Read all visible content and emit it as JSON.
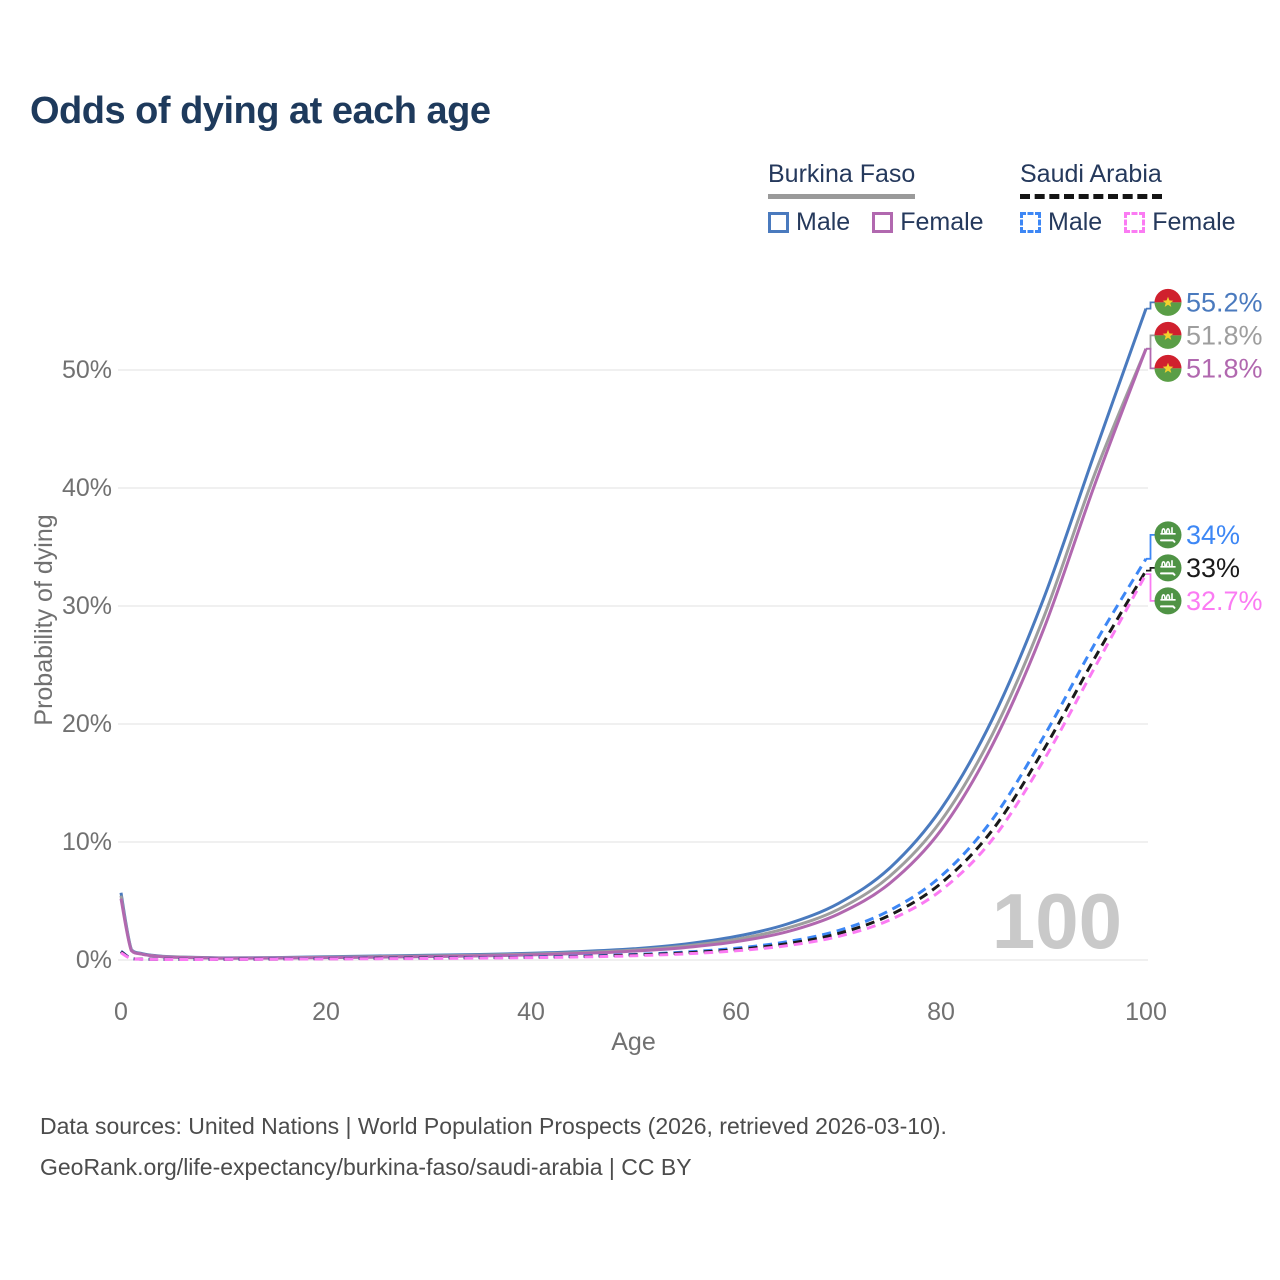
{
  "title": "Odds of dying at each age",
  "legend": {
    "groups": [
      {
        "country": "Burkina Faso",
        "line_style": "solid",
        "underline_color": "#9a9a9a",
        "items": [
          {
            "label": "Male",
            "color": "#4a7abe"
          },
          {
            "label": "Female",
            "color": "#b168af"
          }
        ]
      },
      {
        "country": "Saudi Arabia",
        "line_style": "dashed",
        "underline_color": "#141414",
        "items": [
          {
            "label": "Male",
            "color": "#3d87f5"
          },
          {
            "label": "Female",
            "color": "#fb7bf3"
          }
        ]
      }
    ]
  },
  "watermark": "100",
  "footer": {
    "line1": "Data sources: United Nations | World Population Prospects (2026, retrieved 2026-03-10).",
    "line2": "GeoRank.org/life-expectancy/burkina-faso/saudi-arabia | CC BY"
  },
  "chart_data": {
    "type": "line",
    "title": "Odds of dying at each age",
    "xlabel": "Age",
    "ylabel": "Probability of dying",
    "xlim": [
      0,
      100
    ],
    "ylim": [
      0,
      57
    ],
    "x_ticks": [
      0,
      20,
      40,
      60,
      80,
      100
    ],
    "y_ticks": [
      0,
      10,
      20,
      30,
      40,
      50
    ],
    "y_tick_suffix": "%",
    "grid": "horizontal",
    "legend_position": "top-right",
    "ages": [
      0,
      1,
      2,
      3,
      4,
      5,
      10,
      15,
      20,
      25,
      30,
      35,
      40,
      45,
      50,
      55,
      60,
      65,
      70,
      75,
      80,
      85,
      90,
      95,
      100
    ],
    "series": [
      {
        "name": "Burkina Faso Male",
        "country": "Burkina Faso",
        "sex": "Male",
        "color": "#4a7abe",
        "dashed": false,
        "flag": "burkina-faso",
        "end_label": "55.2%",
        "values": [
          5.7,
          0.9,
          0.55,
          0.4,
          0.32,
          0.28,
          0.18,
          0.2,
          0.28,
          0.34,
          0.4,
          0.47,
          0.57,
          0.72,
          0.95,
          1.35,
          2.0,
          3.05,
          4.8,
          7.8,
          12.8,
          20.4,
          30.6,
          43.0,
          55.2
        ]
      },
      {
        "name": "Burkina Faso Both sexes",
        "country": "Burkina Faso",
        "sex": "Both",
        "color": "#9e9e9e",
        "dashed": false,
        "flag": "burkina-faso",
        "end_label": "51.8%",
        "values": [
          5.45,
          0.85,
          0.52,
          0.38,
          0.3,
          0.26,
          0.16,
          0.18,
          0.24,
          0.29,
          0.34,
          0.41,
          0.5,
          0.63,
          0.84,
          1.18,
          1.75,
          2.7,
          4.3,
          7.1,
          11.8,
          19.1,
          29.0,
          41.2,
          51.8
        ]
      },
      {
        "name": "Burkina Faso Female",
        "country": "Burkina Faso",
        "sex": "Female",
        "color": "#b168af",
        "dashed": false,
        "flag": "burkina-faso",
        "end_label": "51.8%",
        "values": [
          5.2,
          0.8,
          0.5,
          0.36,
          0.28,
          0.24,
          0.15,
          0.16,
          0.2,
          0.24,
          0.29,
          0.35,
          0.43,
          0.56,
          0.75,
          1.05,
          1.55,
          2.4,
          3.9,
          6.5,
          11.0,
          18.2,
          28.0,
          40.3,
          51.8
        ]
      },
      {
        "name": "Saudi Arabia Male",
        "country": "Saudi Arabia",
        "sex": "Male",
        "color": "#3d87f5",
        "dashed": true,
        "flag": "saudi-arabia",
        "end_label": "34%",
        "values": [
          0.75,
          0.12,
          0.08,
          0.06,
          0.055,
          0.05,
          0.06,
          0.09,
          0.13,
          0.16,
          0.18,
          0.21,
          0.26,
          0.34,
          0.47,
          0.67,
          1.0,
          1.55,
          2.5,
          4.2,
          7.1,
          11.9,
          18.9,
          26.8,
          34.0
        ]
      },
      {
        "name": "Saudi Arabia Both sexes",
        "country": "Saudi Arabia",
        "sex": "Both",
        "color": "#1a1a1a",
        "dashed": true,
        "flag": "saudi-arabia",
        "end_label": "33%",
        "values": [
          0.7,
          0.11,
          0.075,
          0.058,
          0.05,
          0.047,
          0.055,
          0.08,
          0.11,
          0.14,
          0.16,
          0.19,
          0.23,
          0.3,
          0.42,
          0.6,
          0.88,
          1.38,
          2.25,
          3.8,
          6.5,
          11.0,
          17.8,
          25.6,
          33.0
        ]
      },
      {
        "name": "Saudi Arabia Female",
        "country": "Saudi Arabia",
        "sex": "Female",
        "color": "#fb7bf3",
        "dashed": true,
        "flag": "saudi-arabia",
        "end_label": "32.7%",
        "values": [
          0.62,
          0.1,
          0.07,
          0.055,
          0.047,
          0.043,
          0.05,
          0.07,
          0.09,
          0.11,
          0.13,
          0.16,
          0.2,
          0.26,
          0.36,
          0.52,
          0.78,
          1.22,
          2.0,
          3.4,
          5.9,
          10.2,
          16.9,
          24.8,
          32.7
        ]
      }
    ],
    "colors": {
      "title": "#1e3a5c",
      "axis_text": "#717171",
      "gridline": "#ebebeb",
      "watermark": "#c9c9c9",
      "footer_text": "#4c4c4c",
      "bf_flag_red": "#d0202e",
      "bf_flag_green": "#5a9e46",
      "bf_flag_star": "#f2d12e",
      "sa_flag_green": "#4f9345"
    }
  }
}
